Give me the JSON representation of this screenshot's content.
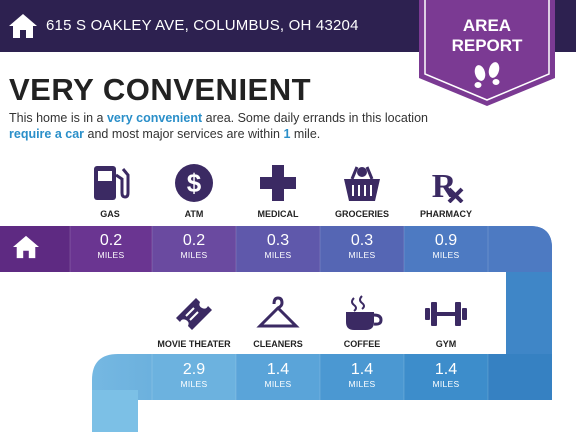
{
  "header": {
    "address": "615 S OAKLEY AVE, COLUMBUS, OH 43204"
  },
  "badge": {
    "line1": "AREA",
    "line2": "REPORT"
  },
  "headline": "VERY CONVENIENT",
  "description": {
    "p1": "This home is in a ",
    "h1": "very convenient",
    "p2": " area. Some daily errands in this location ",
    "h2": "require a car",
    "p3": " and most major services are within ",
    "h3": "1",
    "p4": " mile."
  },
  "amenities_top": [
    {
      "label": "GAS",
      "value": "0.2",
      "unit": "MILES",
      "icon": "gas-pump-icon"
    },
    {
      "label": "ATM",
      "value": "0.2",
      "unit": "MILES",
      "icon": "dollar-icon"
    },
    {
      "label": "MEDICAL",
      "value": "0.3",
      "unit": "MILES",
      "icon": "medical-cross-icon"
    },
    {
      "label": "GROCERIES",
      "value": "0.3",
      "unit": "MILES",
      "icon": "grocery-basket-icon"
    },
    {
      "label": "PHARMACY",
      "value": "0.9",
      "unit": "MILES",
      "icon": "rx-icon"
    }
  ],
  "amenities_bottom": [
    {
      "label": "MOVIE THEATER",
      "value": "2.9",
      "unit": "MILES",
      "icon": "movie-ticket-icon"
    },
    {
      "label": "CLEANERS",
      "value": "1.4",
      "unit": "MILES",
      "icon": "hanger-icon"
    },
    {
      "label": "COFFEE",
      "value": "1.4",
      "unit": "MILES",
      "icon": "coffee-cup-icon"
    },
    {
      "label": "GYM",
      "value": "1.4",
      "unit": "MILES",
      "icon": "dumbbell-icon"
    }
  ],
  "colors": {
    "header_bg": "#2d2150",
    "badge_purple": "#7b3a93",
    "icon_purple": "#3b2a63",
    "highlight_blue": "#2a8fc9"
  }
}
